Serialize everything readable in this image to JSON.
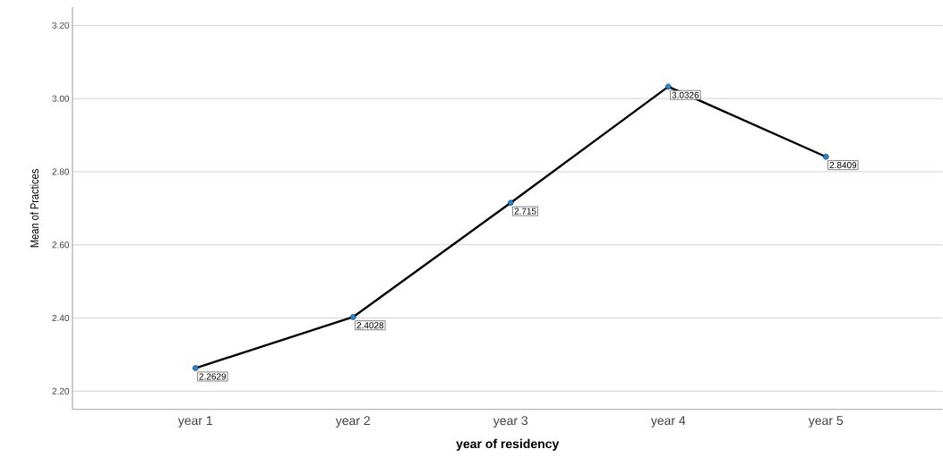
{
  "chart_data": {
    "type": "line",
    "xlabel": "year of residency",
    "ylabel": "Mean of Practices",
    "categories": [
      "year 1",
      "year 2",
      "year 3",
      "year 4",
      "year 5"
    ],
    "values": [
      2.2629,
      2.4028,
      2.715,
      3.0326,
      2.8409
    ],
    "color": "#000000",
    "marker": "circle",
    "line_style": "solid",
    "data_labels": true,
    "grid": "y",
    "ylim": [
      2.15,
      3.25
    ],
    "yticks": [
      {
        "value": 2.2,
        "label": "2.20"
      },
      {
        "value": 2.4,
        "label": "2.40"
      },
      {
        "value": 2.6,
        "label": "2.60"
      },
      {
        "value": 2.8,
        "label": "2.80"
      },
      {
        "value": 3.0,
        "label": "3.00"
      },
      {
        "value": 3.2,
        "label": "3.20"
      }
    ]
  }
}
